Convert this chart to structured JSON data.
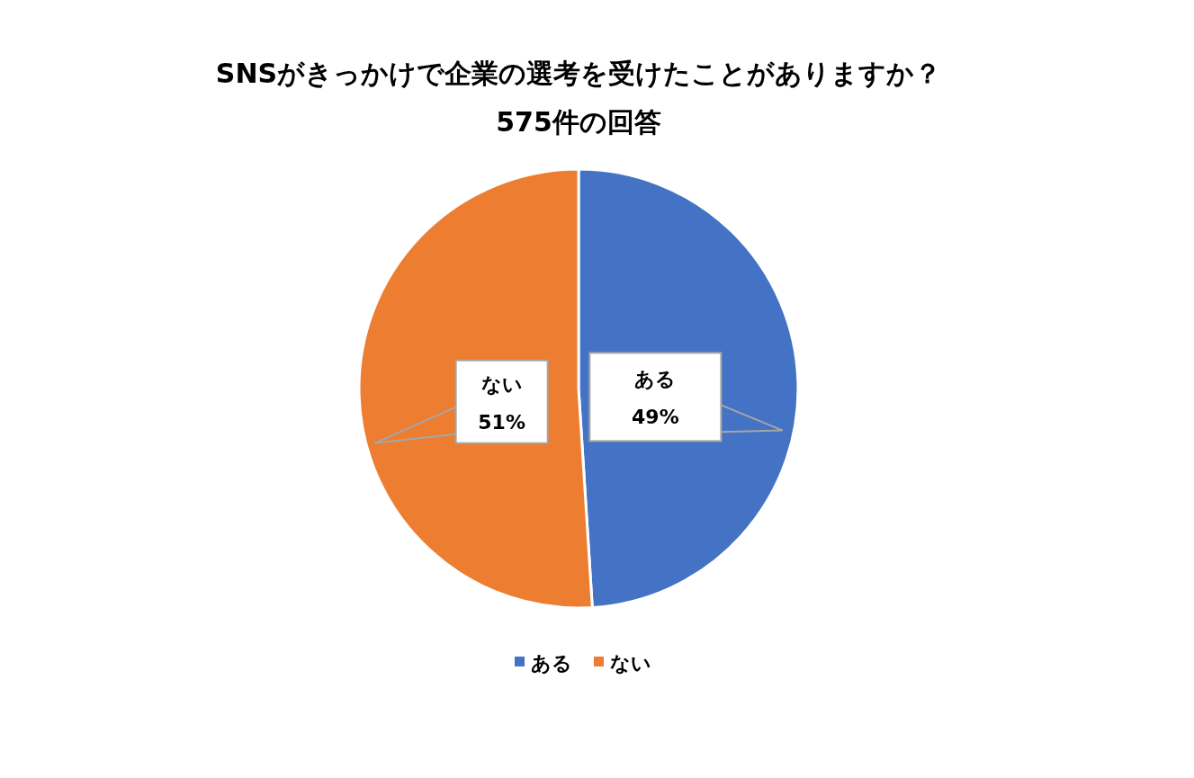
{
  "chart_data": {
    "type": "pie",
    "title": "SNSがきっかけで企業の選考を受けたことがありますか？",
    "subtitle": "575件の回答",
    "categories": [
      "ある",
      "ない"
    ],
    "values": [
      49,
      51
    ],
    "colors": [
      "#4472c4",
      "#ed7d31"
    ],
    "value_labels": [
      "49%",
      "51%"
    ],
    "legend": "bottom"
  }
}
